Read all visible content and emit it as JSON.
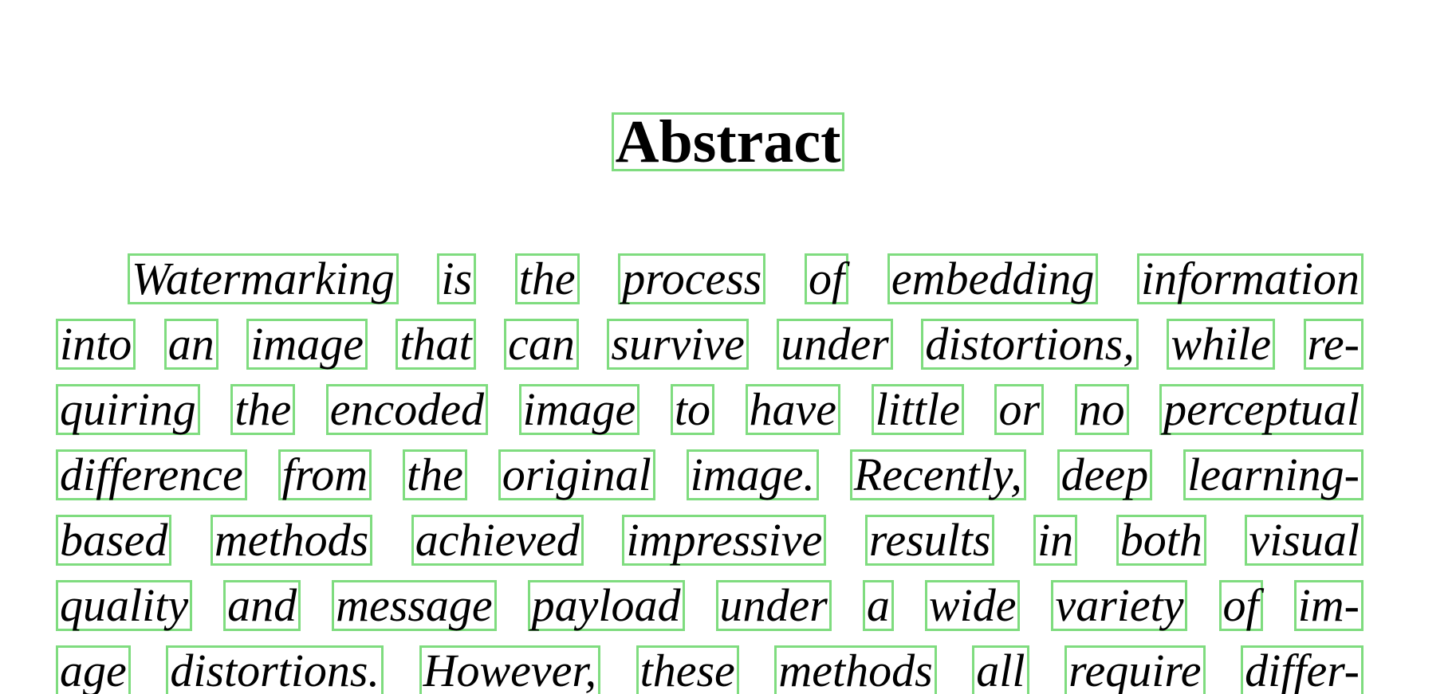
{
  "title": "Abstract",
  "lines": [
    [
      "Watermarking",
      "is",
      "the",
      "process",
      "of",
      "embedding",
      "information"
    ],
    [
      "into",
      "an",
      "image",
      "that",
      "can",
      "survive",
      "under",
      "distortions,",
      "while",
      "re-"
    ],
    [
      "quiring",
      "the",
      "encoded",
      "image",
      "to",
      "have",
      "little",
      "or",
      "no",
      "perceptual"
    ],
    [
      "difference",
      "from",
      "the",
      "original",
      "image.",
      "Recently,",
      "deep",
      "learning-"
    ],
    [
      "based",
      "methods",
      "achieved",
      "impressive",
      "results",
      "in",
      "both",
      "visual"
    ],
    [
      "quality",
      "and",
      "message",
      "payload",
      "under",
      "a",
      "wide",
      "variety",
      "of",
      "im-"
    ],
    [
      "age",
      "distortions.",
      "However,",
      "these",
      "methods",
      "all",
      "require",
      "differ-"
    ]
  ],
  "colors": {
    "box_outline": "#7fdc7f",
    "text": "#000000",
    "background": "#ffffff"
  }
}
